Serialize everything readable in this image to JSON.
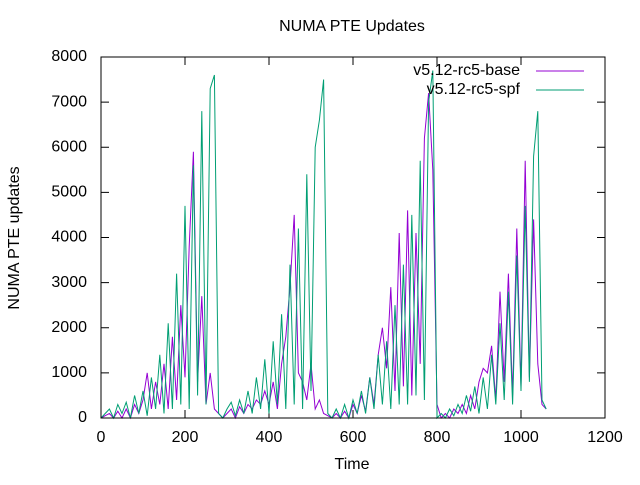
{
  "chart_data": {
    "type": "line",
    "title": "NUMA PTE Updates",
    "xlabel": "Time",
    "ylabel": "NUMA PTE updates",
    "x": [
      0,
      10,
      20,
      30,
      40,
      50,
      60,
      70,
      80,
      90,
      100,
      110,
      120,
      130,
      140,
      150,
      160,
      170,
      180,
      190,
      200,
      210,
      220,
      230,
      240,
      250,
      260,
      270,
      280,
      290,
      300,
      310,
      320,
      330,
      340,
      350,
      360,
      370,
      380,
      390,
      400,
      410,
      420,
      430,
      440,
      450,
      460,
      470,
      480,
      490,
      500,
      510,
      520,
      530,
      540,
      550,
      560,
      570,
      580,
      590,
      600,
      610,
      620,
      630,
      640,
      650,
      660,
      670,
      680,
      690,
      700,
      710,
      720,
      730,
      740,
      750,
      760,
      770,
      780,
      790,
      800,
      810,
      820,
      830,
      840,
      850,
      860,
      870,
      880,
      890,
      900,
      910,
      920,
      930,
      940,
      950,
      960,
      970,
      980,
      990,
      1000,
      1010,
      1020,
      1030,
      1040,
      1050,
      1060
    ],
    "series": [
      {
        "name": "v5.12-rc5-base",
        "color": "#9400d3",
        "values": [
          0,
          50,
          100,
          0,
          150,
          0,
          200,
          0,
          300,
          100,
          400,
          1000,
          200,
          800,
          300,
          1200,
          200,
          1800,
          400,
          2500,
          900,
          3800,
          5900,
          800,
          2700,
          300,
          1000,
          200,
          100,
          0,
          100,
          200,
          0,
          250,
          100,
          300,
          200,
          400,
          300,
          600,
          300,
          800,
          200,
          1200,
          1800,
          2900,
          4500,
          1000,
          800,
          400,
          1200,
          200,
          400,
          100,
          50,
          0,
          100,
          0,
          150,
          0,
          300,
          100,
          500,
          150,
          900,
          300,
          1400,
          2000,
          1100,
          2900,
          600,
          4100,
          700,
          4600,
          500,
          4100,
          1200,
          6200,
          7200,
          5500,
          300,
          0,
          100,
          0,
          200,
          100,
          300,
          100,
          500,
          200,
          800,
          1100,
          1000,
          1600,
          400,
          2800,
          800,
          3200,
          500,
          4200,
          700,
          5700,
          900,
          4400,
          1200,
          300,
          200
        ]
      },
      {
        "name": "v5.12-rc5-spf",
        "color": "#009e73",
        "values": [
          0,
          100,
          200,
          0,
          300,
          100,
          350,
          0,
          500,
          100,
          600,
          50,
          900,
          200,
          1400,
          100,
          2100,
          200,
          3200,
          300,
          4700,
          200,
          5600,
          500,
          6800,
          300,
          7300,
          7600,
          100,
          0,
          200,
          350,
          50,
          400,
          100,
          600,
          100,
          900,
          200,
          1300,
          100,
          1700,
          300,
          2300,
          200,
          3400,
          300,
          4200,
          200,
          5400,
          600,
          6000,
          6600,
          7500,
          100,
          0,
          200,
          0,
          300,
          0,
          400,
          100,
          600,
          100,
          900,
          200,
          1400,
          300,
          1700,
          200,
          2500,
          300,
          3400,
          300,
          4500,
          500,
          5700,
          400,
          7000,
          7700,
          0,
          100,
          0,
          200,
          50,
          300,
          100,
          500,
          150,
          700,
          100,
          900,
          200,
          1400,
          300,
          2100,
          400,
          2800,
          300,
          3600,
          600,
          4700,
          800,
          5800,
          6800,
          400,
          200
        ]
      }
    ],
    "xlim": [
      0,
      1200
    ],
    "xticks": [
      0,
      200,
      400,
      600,
      800,
      1000,
      1200
    ],
    "ylim": [
      0,
      8000
    ],
    "yticks": [
      0,
      1000,
      2000,
      3000,
      4000,
      5000,
      6000,
      7000,
      8000
    ],
    "legend": "top-right"
  }
}
